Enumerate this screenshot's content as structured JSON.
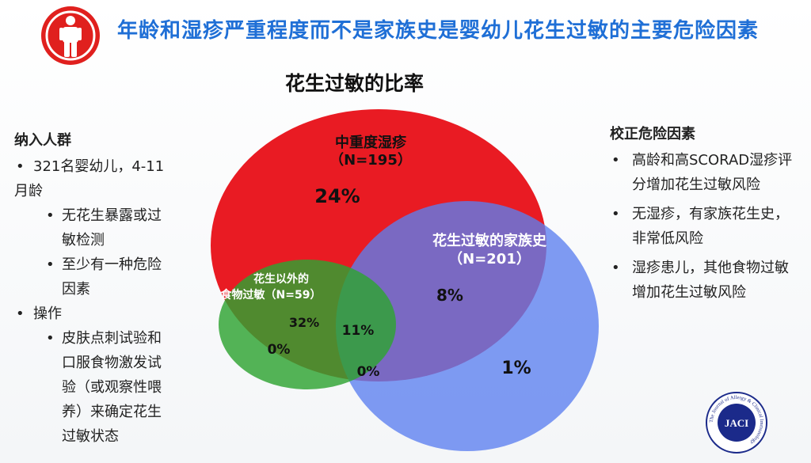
{
  "title": "年龄和湿疹严重程度而不是家族史是婴幼儿花生过敏的主要危险因素",
  "subtitle": "花生过敏的比率",
  "left_panel": {
    "heading": "纳入人群",
    "items": [
      {
        "level": 1,
        "text": "321名婴幼儿，4-11"
      },
      {
        "level": 0,
        "text": "月龄"
      },
      {
        "level": 2,
        "text": "无花生暴露或过"
      },
      {
        "level": 0,
        "text": "敏检测"
      },
      {
        "level": 2,
        "text": "至少有一种危险"
      },
      {
        "level": 0,
        "text": "因素"
      },
      {
        "level": 1,
        "text": "操作"
      },
      {
        "level": 2,
        "text": "皮肤点刺试验和"
      },
      {
        "level": 0,
        "text": "口服食物激发试"
      },
      {
        "level": 0,
        "text": "验（或观察性喂"
      },
      {
        "level": 0,
        "text": "养）来确定花生"
      },
      {
        "level": 0,
        "text": "过敏状态"
      }
    ]
  },
  "right_panel": {
    "heading": "校正危险因素",
    "items": [
      "高龄和高SCORAD湿疹评分增加花生过敏风险",
      "无湿疹，有家族花生史，非常低风险",
      "湿疹患儿，其他食物过敏增加花生过敏风险"
    ]
  },
  "venn": {
    "sets": {
      "eczema": {
        "name": "中重度湿疹",
        "n": "（N=195）",
        "color": "#e8141c"
      },
      "family": {
        "name": "花生过敏的家族史",
        "n": "（N=201）",
        "color": "#6e8df0"
      },
      "food": {
        "name_line1": "花生以外的",
        "name_line2": "食物过敏（N=59）",
        "color": "#2ea332"
      }
    },
    "regions": {
      "eczema_only": "24%",
      "eczema_family": "8%",
      "eczema_food": "32%",
      "all_three": "11%",
      "food_only": "0%",
      "food_family": "0%",
      "family_only": "1%"
    }
  },
  "logo": {
    "text": "JACI",
    "ring": "The Journal of Allergy & Clinical Immunology"
  }
}
